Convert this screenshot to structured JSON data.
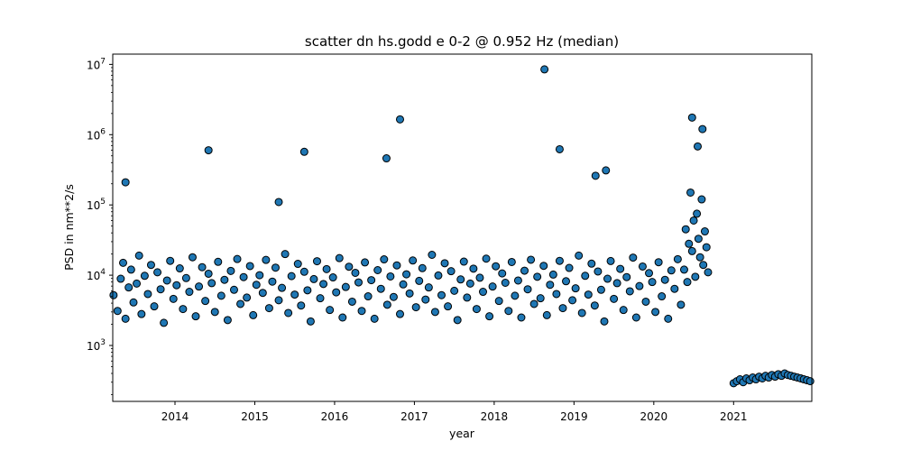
{
  "chart_data": {
    "type": "scatter",
    "title": "scatter dn hs.godd e 0-2 @ 0.952 Hz (median)",
    "xlabel": "year",
    "ylabel": "PSD in nm**2/s",
    "yscale": "log",
    "xlim": [
      2013.22,
      2021.98
    ],
    "ylim": [
      160,
      14000000
    ],
    "grid": false,
    "legend": "none",
    "x_ticks": [
      {
        "value": 2014,
        "label": "2014"
      },
      {
        "value": 2015,
        "label": "2015"
      },
      {
        "value": 2016,
        "label": "2016"
      },
      {
        "value": 2017,
        "label": "2017"
      },
      {
        "value": 2018,
        "label": "2018"
      },
      {
        "value": 2019,
        "label": "2019"
      },
      {
        "value": 2020,
        "label": "2020"
      },
      {
        "value": 2021,
        "label": "2021"
      }
    ],
    "y_ticks": [
      {
        "value": 1000,
        "base": "10",
        "exp": "3"
      },
      {
        "value": 10000,
        "base": "10",
        "exp": "4"
      },
      {
        "value": 100000,
        "base": "10",
        "exp": "5"
      },
      {
        "value": 1000000,
        "base": "10",
        "exp": "6"
      },
      {
        "value": 10000000,
        "base": "10",
        "exp": "7"
      }
    ],
    "marker": {
      "fill": "#1f77b4",
      "edge": "#000000"
    },
    "series": [
      {
        "x": [
          2013.23,
          2013.28,
          2013.32,
          2013.35,
          2013.38,
          2013.42,
          2013.45,
          2013.48,
          2013.52,
          2013.55,
          2013.58,
          2013.62,
          2013.66,
          2013.7,
          2013.74,
          2013.78,
          2013.82,
          2013.86,
          2013.9,
          2013.94,
          2013.98,
          2014.02,
          2014.06,
          2014.1,
          2014.14,
          2014.18,
          2014.22,
          2014.26,
          2014.3,
          2014.34,
          2014.38,
          2014.42,
          2014.46,
          2014.5,
          2014.54,
          2014.58,
          2014.62,
          2014.66,
          2014.7,
          2014.74,
          2014.78,
          2014.82,
          2014.86,
          2014.9,
          2014.94,
          2014.98,
          2015.02,
          2015.06,
          2015.1,
          2015.14,
          2015.18,
          2015.22,
          2015.26,
          2015.3,
          2015.34,
          2015.38,
          2015.42,
          2015.46,
          2015.5,
          2015.54,
          2015.58,
          2015.62,
          2015.66,
          2015.7,
          2015.74,
          2015.78,
          2015.82,
          2015.86,
          2015.9,
          2015.94,
          2015.98,
          2016.02,
          2016.06,
          2016.1,
          2016.14,
          2016.18,
          2016.22,
          2016.26,
          2016.3,
          2016.34,
          2016.38,
          2016.42,
          2016.46,
          2016.5,
          2016.54,
          2016.58,
          2016.62,
          2016.66,
          2016.7,
          2016.74,
          2016.78,
          2016.82,
          2016.86,
          2016.9,
          2016.94,
          2016.98,
          2017.02,
          2017.06,
          2017.1,
          2017.14,
          2017.18,
          2017.22,
          2017.26,
          2017.3,
          2017.34,
          2017.38,
          2017.42,
          2017.46,
          2017.5,
          2017.54,
          2017.58,
          2017.62,
          2017.66,
          2017.7,
          2017.74,
          2017.78,
          2017.82,
          2017.86,
          2017.9,
          2017.94,
          2017.98,
          2018.02,
          2018.06,
          2018.1,
          2018.14,
          2018.18,
          2018.22,
          2018.26,
          2018.3,
          2018.34,
          2018.38,
          2018.42,
          2018.46,
          2018.5,
          2018.54,
          2018.58,
          2018.62,
          2018.66,
          2018.7,
          2018.74,
          2018.78,
          2018.82,
          2018.86,
          2018.9,
          2018.94,
          2018.98,
          2019.02,
          2019.06,
          2019.1,
          2019.14,
          2019.18,
          2019.22,
          2019.26,
          2019.3,
          2019.34,
          2019.38,
          2019.42,
          2019.46,
          2019.5,
          2019.54,
          2019.58,
          2019.62,
          2019.66,
          2019.7,
          2019.74,
          2019.78,
          2019.82,
          2019.86,
          2019.9,
          2019.94,
          2019.98,
          2020.02,
          2020.06,
          2020.1,
          2020.14,
          2020.18,
          2020.22,
          2020.26,
          2020.3,
          2020.34,
          2020.38,
          2020.4,
          2020.42,
          2020.44,
          2020.46,
          2020.48,
          2020.5,
          2020.52,
          2020.54,
          2020.56,
          2020.58,
          2020.6,
          2020.62,
          2020.64,
          2020.66,
          2020.68,
          2021.0,
          2021.04,
          2021.08,
          2021.12,
          2021.16,
          2021.2,
          2021.24,
          2021.28,
          2021.32,
          2021.36,
          2021.4,
          2021.44,
          2021.48,
          2021.52,
          2021.56,
          2021.6,
          2021.64,
          2021.68,
          2021.72,
          2021.76,
          2021.8,
          2021.84,
          2021.88,
          2021.92,
          2021.96
        ],
        "y": [
          5200,
          3100,
          8900,
          15000,
          2400,
          6700,
          12000,
          4100,
          7600,
          19000,
          2800,
          9800,
          5400,
          14000,
          3600,
          11000,
          6300,
          2100,
          8400,
          16000,
          4600,
          7200,
          12500,
          3300,
          9100,
          5800,
          18000,
          2600,
          6900,
          13000,
          4300,
          10500,
          7700,
          3000,
          15500,
          5100,
          8600,
          2300,
          11500,
          6200,
          17000,
          3900,
          9400,
          4800,
          13500,
          2700,
          7300,
          10000,
          5600,
          16500,
          3400,
          8100,
          12800,
          4400,
          6600,
          20000,
          2900,
          9700,
          5300,
          14500,
          3700,
          11200,
          6100,
          2200,
          8800,
          15800,
          4700,
          7500,
          12200,
          3200,
          9300,
          5700,
          17500,
          2500,
          6800,
          13200,
          4200,
          10800,
          7900,
          3100,
          15200,
          5000,
          8500,
          2400,
          11800,
          6400,
          16800,
          3800,
          9600,
          4900,
          13800,
          2800,
          7400,
          10300,
          5500,
          16200,
          3500,
          8300,
          12600,
          4500,
          6700,
          19500,
          3000,
          9900,
          5200,
          14800,
          3600,
          11400,
          6000,
          2300,
          8700,
          15600,
          4800,
          7600,
          12400,
          3300,
          9200,
          5800,
          17200,
          2600,
          6900,
          13400,
          4300,
          10600,
          7800,
          3100,
          15400,
          5100,
          8400,
          2500,
          11600,
          6300,
          16600,
          3900,
          9500,
          4700,
          13600,
          2700,
          7300,
          10200,
          5400,
          16000,
          3400,
          8200,
          12700,
          4400,
          6500,
          19000,
          2900,
          9800,
          5300,
          14600,
          3700,
          11300,
          6200,
          2200,
          8900,
          15900,
          4600,
          7700,
          12300,
          3200,
          9400,
          5900,
          17800,
          2500,
          7000,
          13300,
          4200,
          10700,
          8000,
          3000,
          15300,
          5000,
          8600,
          2400,
          11700,
          6400,
          16900,
          3800,
          12000,
          45000,
          8000,
          28000,
          150000,
          22000,
          60000,
          9500,
          75000,
          33000,
          18000,
          120000,
          14000,
          42000,
          25000,
          11000,
          290,
          310,
          330,
          300,
          340,
          320,
          350,
          330,
          360,
          340,
          370,
          350,
          380,
          360,
          390,
          370,
          400,
          380,
          370,
          360,
          350,
          340,
          330,
          320,
          310
        ]
      }
    ],
    "outliers": {
      "x": [
        2013.38,
        2014.42,
        2015.3,
        2015.62,
        2016.65,
        2016.82,
        2018.63,
        2018.82,
        2020.48,
        2020.61,
        2020.55,
        2019.27,
        2019.4
      ],
      "y": [
        210000,
        600000,
        110000,
        570000,
        460000,
        1650000,
        8500000,
        620000,
        1750000,
        1200000,
        680000,
        260000,
        310000
      ]
    }
  }
}
